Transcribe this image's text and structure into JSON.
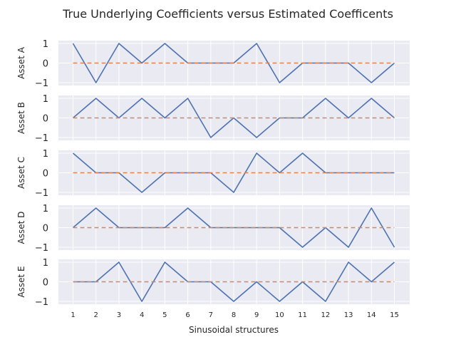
{
  "chart_data": {
    "type": "line",
    "title": "True Underlying Coefficients versus Estimated Coefficents",
    "xlabel": "Sinusoidal structures",
    "x": [
      1,
      2,
      3,
      4,
      5,
      6,
      7,
      8,
      9,
      10,
      11,
      12,
      13,
      14,
      15
    ],
    "ylim": [
      -1,
      1
    ],
    "yticks": [
      1,
      0,
      -1
    ],
    "yticklabels": [
      "1",
      "0",
      "−1"
    ],
    "grid": true,
    "colors": {
      "true": "#4c72b0",
      "estimated": "#dd8452",
      "panel_bg": "#eaeaf2",
      "grid": "#ffffff"
    },
    "panels": [
      {
        "ylabel": "Asset A",
        "series": [
          {
            "values": [
              1,
              -1,
              1,
              0,
              1,
              0,
              0,
              0,
              1,
              -1,
              0,
              0,
              0,
              -1,
              0
            ]
          },
          {
            "values": [
              0,
              0,
              0,
              0,
              0,
              0,
              0,
              0,
              0,
              0,
              0,
              0,
              0,
              0,
              0
            ]
          }
        ]
      },
      {
        "ylabel": "Asset B",
        "series": [
          {
            "values": [
              0,
              1,
              0,
              1,
              0,
              1,
              -1,
              0,
              -1,
              0,
              0,
              1,
              0,
              1,
              0
            ]
          },
          {
            "values": [
              0,
              0,
              0,
              0,
              0,
              0,
              0,
              0,
              0,
              0,
              0,
              0,
              0,
              0,
              0
            ]
          }
        ]
      },
      {
        "ylabel": "Asset C",
        "series": [
          {
            "values": [
              1,
              0,
              0,
              -1,
              0,
              0,
              0,
              -1,
              1,
              0,
              1,
              0,
              0,
              0,
              0
            ]
          },
          {
            "values": [
              0,
              0,
              0,
              0,
              0,
              0,
              0,
              0,
              0,
              0,
              0,
              0,
              0,
              0,
              0
            ]
          }
        ]
      },
      {
        "ylabel": "Asset D",
        "series": [
          {
            "values": [
              0,
              1,
              0,
              0,
              0,
              1,
              0,
              0,
              0,
              0,
              -1,
              0,
              -1,
              1,
              -1
            ]
          },
          {
            "values": [
              0,
              0,
              0,
              0,
              0,
              0,
              0,
              0,
              0,
              0,
              0,
              0,
              0,
              0,
              0
            ]
          }
        ]
      },
      {
        "ylabel": "Asset E",
        "series": [
          {
            "values": [
              0,
              0,
              1,
              -1,
              1,
              0,
              0,
              -1,
              0,
              -1,
              0,
              -1,
              1,
              0,
              1
            ]
          },
          {
            "values": [
              0,
              0,
              0,
              0,
              0,
              0,
              0,
              0,
              0,
              0,
              0,
              0,
              0,
              0,
              0
            ]
          }
        ]
      }
    ]
  }
}
